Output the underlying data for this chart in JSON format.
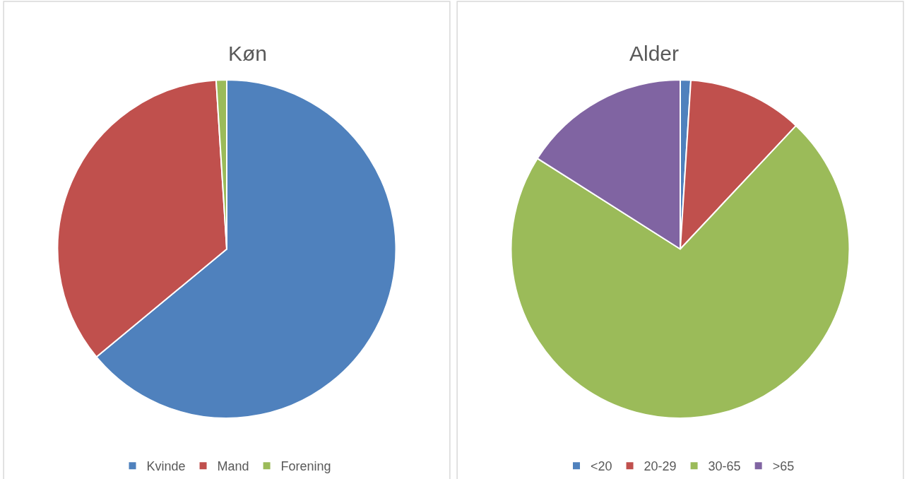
{
  "chart_data": [
    {
      "type": "pie",
      "title": "Køn",
      "categories": [
        "Kvinde",
        "Mand",
        "Forening"
      ],
      "values": [
        64,
        35,
        1
      ],
      "colors": [
        "#4f81bd",
        "#c0504d",
        "#9bbb59"
      ],
      "legend": "bottom"
    },
    {
      "type": "pie",
      "title": "Alder",
      "categories": [
        "<20",
        "20-29",
        "30-65",
        ">65"
      ],
      "values": [
        1,
        11,
        72,
        16
      ],
      "colors": [
        "#4f81bd",
        "#c0504d",
        "#9bbb59",
        "#8064a2"
      ],
      "legend": "bottom"
    }
  ]
}
